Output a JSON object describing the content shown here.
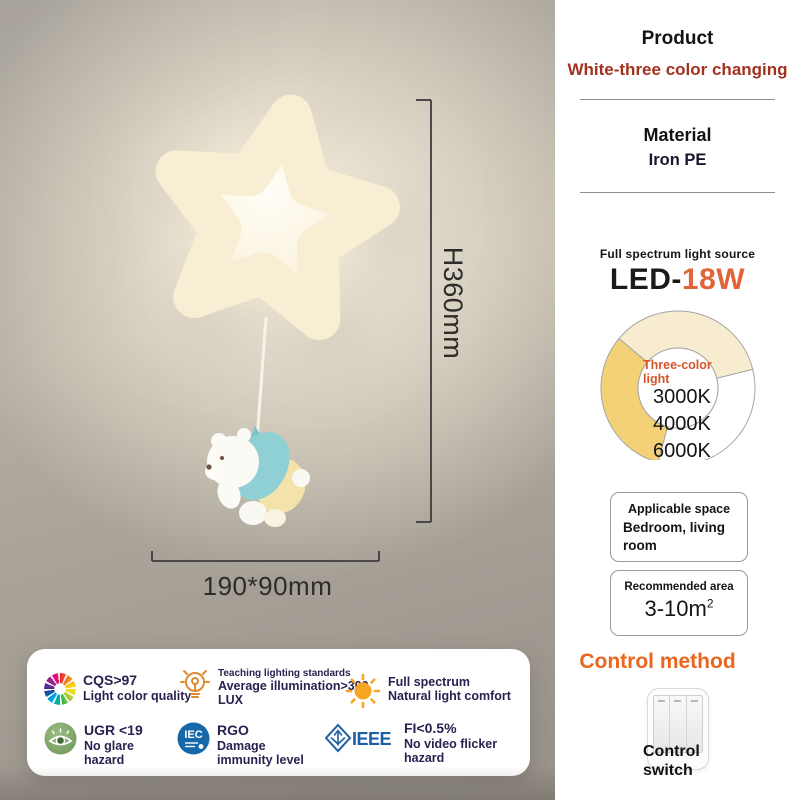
{
  "photo": {
    "height_label": "H360mm",
    "size_label": "190*90mm"
  },
  "panel": {
    "product": {
      "title": "Product",
      "value": "White-three color changing"
    },
    "material": {
      "title": "Material",
      "value": "Iron PE"
    },
    "led": {
      "tagline": "Full spectrum light source",
      "prefix": "LED-",
      "watt": "18W"
    },
    "applicable_space": {
      "title": "Applicable space",
      "value": "Bedroom, living room"
    },
    "recommended_area": {
      "title": "Recommended area",
      "value": "3-10",
      "unit": "m",
      "sup": "2"
    },
    "control": {
      "title": "Control method",
      "label_line1": "Control",
      "label_line2": "switch"
    }
  },
  "features": {
    "items": [
      {
        "icon": "color-wheel-icon",
        "lines": [
          "CQS>97",
          "Light color quality"
        ]
      },
      {
        "icon": "bulb-icon",
        "lines": [
          "Teaching lighting standards",
          "Average illumination>300",
          "LUX"
        ]
      },
      {
        "icon": "sun-icon",
        "lines": [
          "Full spectrum",
          "Natural light comfort"
        ]
      },
      {
        "icon": "eye-icon",
        "lines": [
          "UGR <19",
          "No glare",
          "hazard"
        ]
      },
      {
        "icon": "iec-badge-icon",
        "lines": [
          "RGO",
          "Damage",
          "immunity level"
        ]
      },
      {
        "icon": "ieee-logo-icon",
        "lines": [
          "FI<0.5%",
          "No video flicker",
          "hazard"
        ]
      }
    ]
  },
  "chart_data": {
    "type": "pie",
    "title": "Three-color light",
    "center_label": "Three-color light",
    "labels": [
      "3000K",
      "4000K",
      "6000K"
    ],
    "segments": [
      {
        "label": "3000K",
        "color": "#f4d077",
        "start_deg": 195,
        "end_deg": 310
      },
      {
        "label": "4000K",
        "color": "#f8ecd0",
        "start_deg": 310,
        "end_deg": 436
      },
      {
        "label": "6000K",
        "color": "#ffffff",
        "start_deg": 76,
        "end_deg": 195
      }
    ],
    "legend_position": "center",
    "ring": {
      "outer_r": 77,
      "inner_r": 40,
      "stroke": "#a5a5a5"
    }
  },
  "colors": {
    "accent_red": "#a23120",
    "accent_orange": "#e8661d",
    "led_watt_orange": "#e2653a",
    "donut_gold": "#f4d077",
    "donut_cream": "#f8ecd0",
    "card_text_navy": "#2a2150",
    "wall_gray": "#a9a49c"
  }
}
